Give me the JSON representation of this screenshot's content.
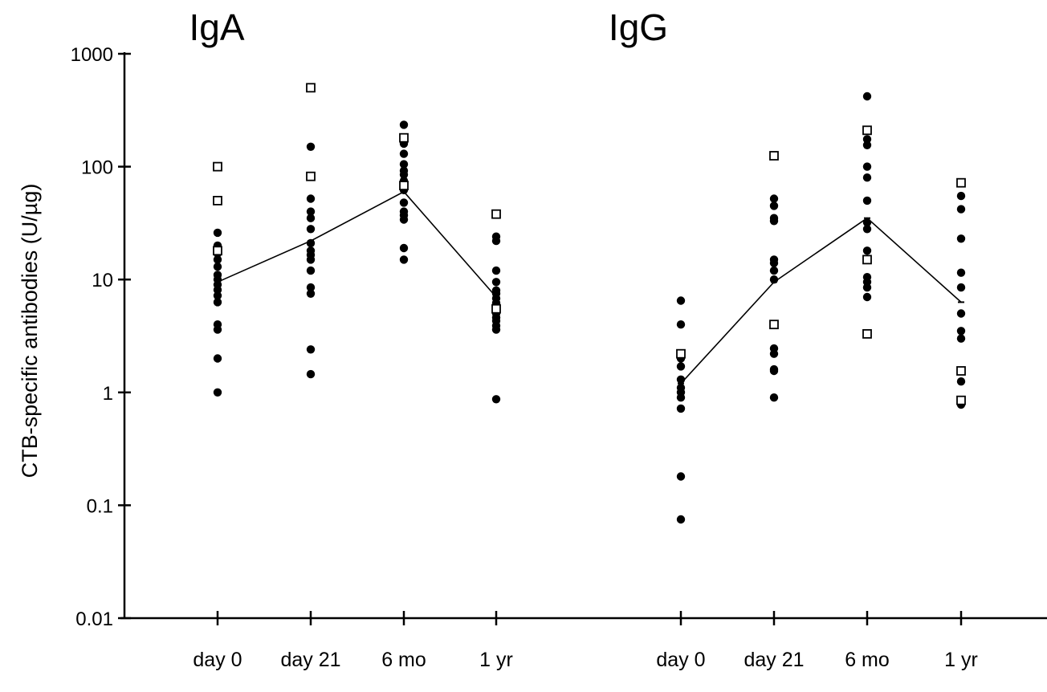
{
  "chart_data": {
    "type": "scatter",
    "scale": "log",
    "ylabel": "CTB-specific antibodies (U/µg)",
    "ylim": [
      0.01,
      1000
    ],
    "yticks": [
      "0.01",
      "0.1",
      "1",
      "10",
      "100",
      "1000"
    ],
    "categories": [
      "day 0",
      "day 21",
      "6 mo",
      "1 yr"
    ],
    "markers": {
      "filled": "black filled circle",
      "open": "black open square"
    },
    "colors": {
      "ink": "#000000",
      "background": "#ffffff"
    },
    "panels": [
      {
        "title": "IgA",
        "geometric_mean_line": [
          9.5,
          22,
          60,
          7
        ],
        "filled": [
          [
            1.0,
            2.0,
            3.6,
            4.0,
            6.3,
            7.2,
            8.1,
            9.0,
            10.0,
            11.0,
            13.0,
            15.0,
            17.0,
            20.0,
            26.0
          ],
          [
            1.45,
            2.4,
            7.5,
            8.5,
            12.0,
            15.0,
            16.5,
            18.0,
            21.0,
            28.0,
            35.0,
            40.0,
            52.0,
            150.0
          ],
          [
            15.0,
            19.0,
            34.0,
            37.0,
            40.0,
            48.0,
            62.0,
            75.0,
            85.0,
            92.0,
            105.0,
            130.0,
            160.0,
            175.0,
            235.0
          ],
          [
            0.87,
            3.6,
            3.9,
            4.3,
            4.6,
            5.0,
            5.5,
            6.2,
            6.8,
            7.5,
            8.0,
            9.5,
            12.0,
            22.0,
            24.0
          ]
        ],
        "open": [
          [
            18.0,
            50.0,
            100.0
          ],
          [
            82.0,
            500.0
          ],
          [
            68.0,
            180.0
          ],
          [
            5.5,
            38.0
          ]
        ]
      },
      {
        "title": "IgG",
        "geometric_mean_line": [
          1.2,
          9.5,
          35,
          6.3
        ],
        "filled": [
          [
            0.075,
            0.18,
            0.72,
            0.9,
            1.0,
            1.1,
            1.3,
            1.7,
            2.0,
            4.0,
            6.5
          ],
          [
            0.9,
            1.55,
            1.6,
            2.2,
            2.45,
            10.0,
            12.0,
            14.0,
            15.0,
            33.0,
            35.0,
            45.0,
            52.0
          ],
          [
            7.0,
            8.5,
            9.5,
            10.5,
            18.0,
            28.0,
            32.0,
            50.0,
            80.0,
            100.0,
            155.0,
            175.0,
            420.0
          ],
          [
            0.78,
            1.25,
            3.0,
            3.5,
            5.0,
            8.5,
            11.5,
            23.0,
            42.0,
            55.0
          ]
        ],
        "open": [
          [
            2.2
          ],
          [
            4.0,
            125.0
          ],
          [
            3.3,
            15.0,
            210.0
          ],
          [
            0.85,
            1.55,
            72.0
          ]
        ]
      }
    ]
  }
}
